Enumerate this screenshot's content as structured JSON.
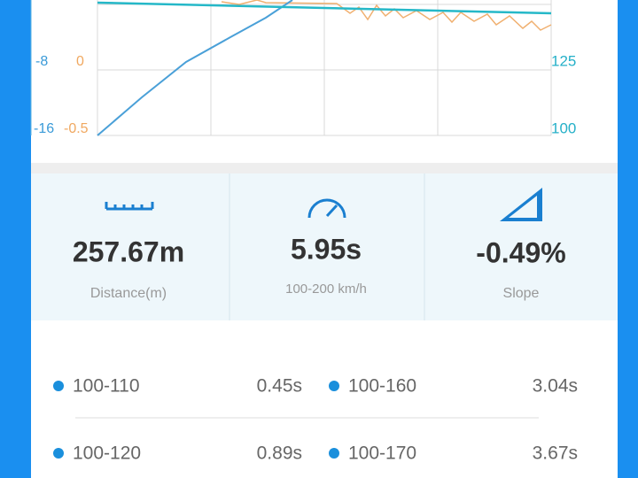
{
  "chart": {
    "left_axis_labels": [
      "-8",
      "-16"
    ],
    "middle_axis_labels": [
      "0",
      "-0.5"
    ],
    "right_axis_labels": [
      "125",
      "100"
    ]
  },
  "stats": [
    {
      "value": "257.67m",
      "label": "Distance(m)"
    },
    {
      "value": "5.95s",
      "label": "100-200 km/h"
    },
    {
      "value": "-0.49%",
      "label": "Slope"
    }
  ],
  "splits": [
    {
      "range": "100-110",
      "time": "0.45s"
    },
    {
      "range": "100-160",
      "time": "3.04s"
    },
    {
      "range": "100-120",
      "time": "0.89s"
    },
    {
      "range": "100-170",
      "time": "3.67s"
    }
  ]
}
